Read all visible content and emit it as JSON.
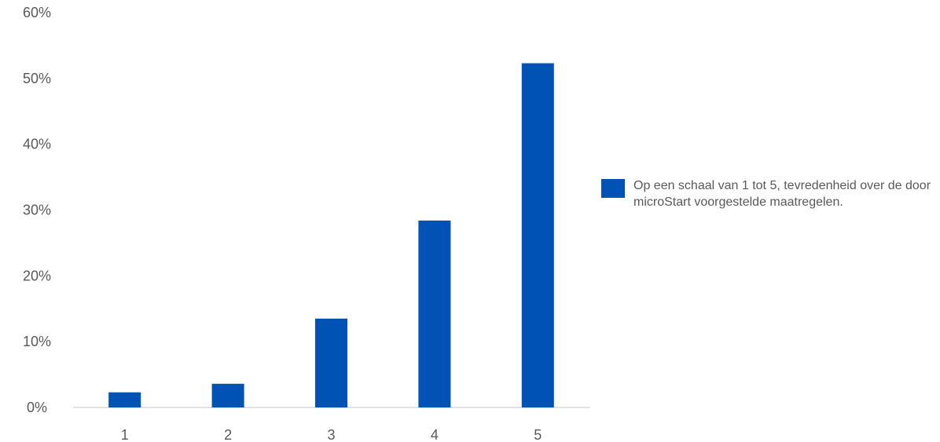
{
  "chart_data": {
    "type": "bar",
    "categories": [
      "1",
      "2",
      "3",
      "4",
      "5"
    ],
    "series": [
      {
        "name": "Op een schaal van 1 tot 5, tevredenheid over de door microStart voorgestelde maatregelen.",
        "values": [
          2.3,
          3.6,
          13.5,
          28.4,
          52.3
        ]
      }
    ],
    "ylim": [
      0,
      60
    ],
    "yticks": [
      "0%",
      "10%",
      "20%",
      "30%",
      "40%",
      "50%",
      "60%"
    ],
    "grid": false,
    "legend_position": "right",
    "colors": {
      "bar": "#0052b4",
      "axis": "#d9d9d9",
      "text": "#595959"
    }
  }
}
